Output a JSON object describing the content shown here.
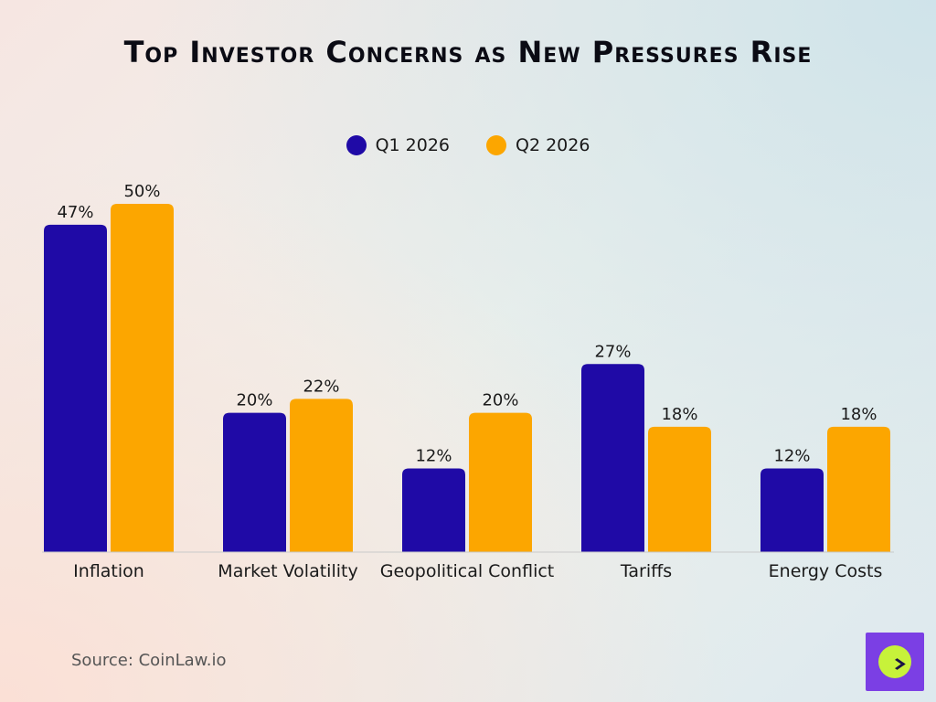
{
  "chart_data": {
    "type": "bar",
    "title": "Top Investor Concerns as New Pressures Rise",
    "categories": [
      "Inflation",
      "Market Volatility",
      "Geopolitical Conflict",
      "Tariffs",
      "Energy Costs"
    ],
    "series": [
      {
        "name": "Q1 2026",
        "values": [
          47,
          20,
          12,
          27,
          12
        ],
        "color": "#1f0aa6"
      },
      {
        "name": "Q2 2026",
        "values": [
          50,
          22,
          20,
          18,
          18
        ],
        "color": "#fca600"
      }
    ],
    "value_suffix": "%",
    "ylim": [
      0,
      50
    ],
    "grid": false,
    "legend": "top-center"
  },
  "source": "Source: CoinLaw.io",
  "logo": {
    "icon": "compass-icon",
    "bg_color": "#7b3fe4",
    "circle_color": "#c7f23a"
  }
}
